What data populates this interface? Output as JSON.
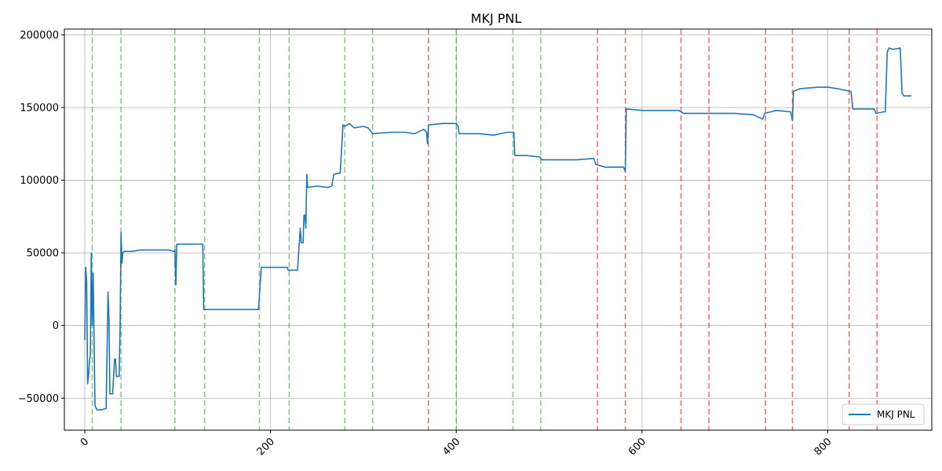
{
  "chart_data": {
    "type": "line",
    "title": "MKJ PNL",
    "xlabel": "",
    "ylabel": "",
    "xlim": [
      -22,
      912
    ],
    "ylim": [
      -72000,
      204000
    ],
    "x_ticks": [
      0,
      200,
      400,
      600,
      800
    ],
    "y_ticks": [
      -50000,
      0,
      50000,
      100000,
      150000,
      200000
    ],
    "x_tick_labels": [
      "0",
      "200",
      "400",
      "600",
      "800"
    ],
    "y_tick_labels": [
      "−50000",
      "0",
      "50000",
      "100000",
      "150000",
      "200000"
    ],
    "grid": true,
    "legend_position": "lower-right",
    "series": [
      {
        "name": "MKJ PNL",
        "color": "#1f77b4",
        "points": [
          [
            0,
            -10000
          ],
          [
            1,
            40000
          ],
          [
            2,
            30000
          ],
          [
            3,
            -40000
          ],
          [
            4,
            -35000
          ],
          [
            5,
            -25000
          ],
          [
            6,
            -20000
          ],
          [
            7,
            50000
          ],
          [
            8,
            0
          ],
          [
            9,
            36000
          ],
          [
            11,
            -55000
          ],
          [
            13,
            -58000
          ],
          [
            18,
            -58000
          ],
          [
            23,
            -57000
          ],
          [
            25,
            23000
          ],
          [
            26,
            5000
          ],
          [
            27,
            -47000
          ],
          [
            30,
            -47000
          ],
          [
            31,
            -35000
          ],
          [
            32,
            -23000
          ],
          [
            33,
            -23000
          ],
          [
            34,
            -35000
          ],
          [
            37,
            -35000
          ],
          [
            38,
            0
          ],
          [
            39,
            64000
          ],
          [
            40,
            43000
          ],
          [
            41,
            50000
          ],
          [
            42,
            51000
          ],
          [
            50,
            51000
          ],
          [
            60,
            52000
          ],
          [
            70,
            52000
          ],
          [
            80,
            52000
          ],
          [
            90,
            52000
          ],
          [
            96,
            51000
          ],
          [
            97,
            52000
          ],
          [
            98,
            28000
          ],
          [
            99,
            56000
          ],
          [
            110,
            56000
          ],
          [
            127,
            56000
          ],
          [
            128,
            11000
          ],
          [
            140,
            11000
          ],
          [
            160,
            11000
          ],
          [
            180,
            11000
          ],
          [
            187,
            11000
          ],
          [
            190,
            40000
          ],
          [
            210,
            40000
          ],
          [
            218,
            40000
          ],
          [
            219,
            38000
          ],
          [
            229,
            38000
          ],
          [
            232,
            67000
          ],
          [
            233,
            57000
          ],
          [
            235,
            57000
          ],
          [
            236,
            76000
          ],
          [
            237,
            76000
          ],
          [
            238,
            67000
          ],
          [
            239,
            104000
          ],
          [
            240,
            95000
          ],
          [
            250,
            96000
          ],
          [
            262,
            95000
          ],
          [
            266,
            96000
          ],
          [
            268,
            104000
          ],
          [
            275,
            105000
          ],
          [
            278,
            138000
          ],
          [
            280,
            137000
          ],
          [
            285,
            139000
          ],
          [
            290,
            136000
          ],
          [
            300,
            137000
          ],
          [
            305,
            136000
          ],
          [
            310,
            132000
          ],
          [
            330,
            133000
          ],
          [
            345,
            133000
          ],
          [
            355,
            132000
          ],
          [
            365,
            135000
          ],
          [
            368,
            133000
          ],
          [
            369,
            125000
          ],
          [
            370,
            138000
          ],
          [
            385,
            139000
          ],
          [
            400,
            139000
          ],
          [
            402,
            137000
          ],
          [
            403,
            132000
          ],
          [
            425,
            132000
          ],
          [
            440,
            131000
          ],
          [
            455,
            133000
          ],
          [
            462,
            133000
          ],
          [
            463,
            117000
          ],
          [
            475,
            117000
          ],
          [
            490,
            116000
          ],
          [
            492,
            114000
          ],
          [
            510,
            114000
          ],
          [
            530,
            114000
          ],
          [
            548,
            115000
          ],
          [
            550,
            111000
          ],
          [
            560,
            109000
          ],
          [
            575,
            109000
          ],
          [
            580,
            109000
          ],
          [
            582,
            106000
          ],
          [
            583,
            149000
          ],
          [
            600,
            148000
          ],
          [
            620,
            148000
          ],
          [
            640,
            148000
          ],
          [
            642,
            147000
          ],
          [
            645,
            146000
          ],
          [
            665,
            146000
          ],
          [
            680,
            146000
          ],
          [
            700,
            146000
          ],
          [
            720,
            145000
          ],
          [
            730,
            142000
          ],
          [
            732,
            146000
          ],
          [
            745,
            148000
          ],
          [
            760,
            147000
          ],
          [
            762,
            141000
          ],
          [
            763,
            161000
          ],
          [
            770,
            163000
          ],
          [
            790,
            164000
          ],
          [
            800,
            164000
          ],
          [
            810,
            163000
          ],
          [
            825,
            161000
          ],
          [
            827,
            149000
          ],
          [
            840,
            149000
          ],
          [
            850,
            149000
          ],
          [
            852,
            146000
          ],
          [
            860,
            147000
          ],
          [
            862,
            147000
          ],
          [
            864,
            188000
          ],
          [
            866,
            191000
          ],
          [
            870,
            190000
          ],
          [
            878,
            191000
          ],
          [
            880,
            160000
          ],
          [
            882,
            158000
          ],
          [
            890,
            158000
          ]
        ]
      }
    ],
    "vertical_lines": {
      "green": [
        8,
        39,
        97,
        129,
        188,
        220,
        280,
        310,
        400,
        461,
        491
      ],
      "red": [
        370,
        552,
        582,
        642,
        672,
        733,
        762,
        823,
        853
      ],
      "green_color": "#2ca02c",
      "red_color": "#ff0000"
    }
  }
}
